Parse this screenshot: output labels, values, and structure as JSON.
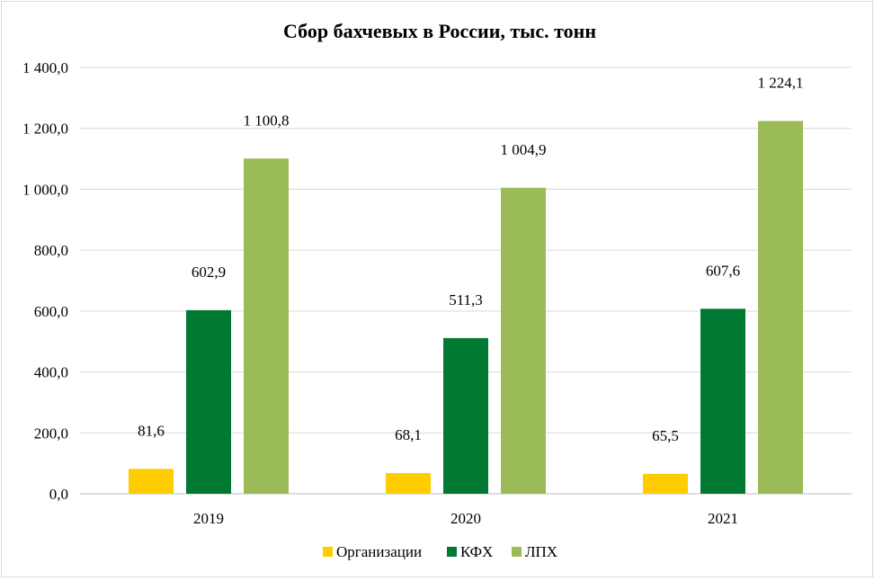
{
  "chart_data": {
    "type": "bar",
    "title": "Сбор бахчевых в России, тыс. тонн",
    "categories": [
      "2019",
      "2020",
      "2021"
    ],
    "series": [
      {
        "name": "Организации",
        "color": "#ffcc00",
        "values": [
          81.6,
          68.1,
          65.5
        ],
        "labels": [
          "81,6",
          "68,1",
          "65,5"
        ]
      },
      {
        "name": "КФХ",
        "color": "#007a33",
        "values": [
          602.9,
          511.3,
          607.6
        ],
        "labels": [
          "602,9",
          "511,3",
          "607,6"
        ]
      },
      {
        "name": "ЛПХ",
        "color": "#9bbb59",
        "values": [
          1100.8,
          1004.9,
          1224.1
        ],
        "labels": [
          "1 100,8",
          "1 004,9",
          "1 224,1"
        ]
      }
    ],
    "ylim": [
      0,
      1400
    ],
    "yticks": [
      0,
      200,
      400,
      600,
      800,
      1000,
      1200,
      1400
    ],
    "ytick_labels": [
      "0,0",
      "200,0",
      "400,0",
      "600,0",
      "800,0",
      "1 000,0",
      "1 200,0",
      "1 400,0"
    ],
    "grid": true,
    "legend": "bottom"
  }
}
